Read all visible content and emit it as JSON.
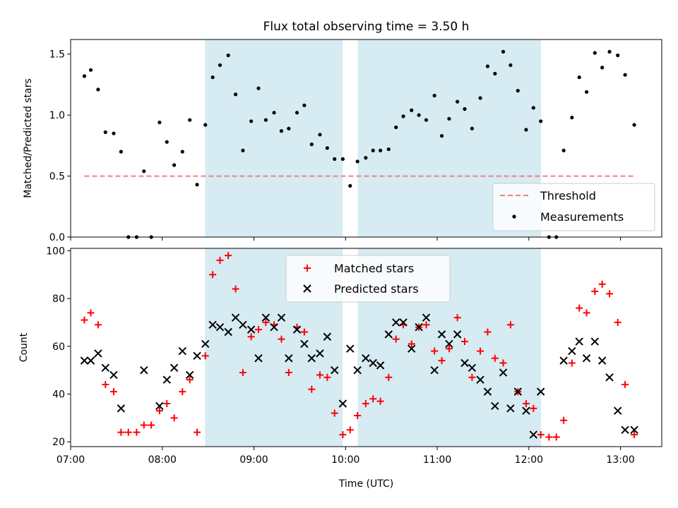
{
  "chart_data": [
    {
      "type": "scatter",
      "title": "Flux total observing time = 3.50 h",
      "ylabel": "Matched/Predicted stars",
      "xlabel": "",
      "xlim": [
        7.0,
        13.45
      ],
      "ylim": [
        0,
        1.62
      ],
      "yticks": [
        {
          "value": 0.0,
          "label": "0.0"
        },
        {
          "value": 0.5,
          "label": "0.5"
        },
        {
          "value": 1.0,
          "label": "1.0"
        },
        {
          "value": 1.5,
          "label": "1.5"
        }
      ],
      "xticks": [
        7,
        8,
        9,
        10,
        11,
        12,
        13
      ],
      "shaded_spans": [
        [
          8.467,
          9.967
        ],
        [
          10.133,
          12.133
        ]
      ],
      "shade_color": "#add8e6",
      "threshold": {
        "name": "Threshold",
        "value": 0.5,
        "x_range": [
          7.15,
          13.15
        ],
        "color": "#f08080"
      },
      "legend": {
        "position": "lower-right",
        "entries": [
          "Threshold",
          "Measurements"
        ]
      },
      "series": [
        {
          "name": "Measurements",
          "color": "#000000",
          "x": [
            7.15,
            7.22,
            7.3,
            7.38,
            7.47,
            7.55,
            7.63,
            7.72,
            7.8,
            7.88,
            7.97,
            8.05,
            8.13,
            8.22,
            8.3,
            8.38,
            8.47,
            8.55,
            8.63,
            8.72,
            8.8,
            8.88,
            8.97,
            9.05,
            9.13,
            9.22,
            9.3,
            9.38,
            9.47,
            9.55,
            9.63,
            9.72,
            9.8,
            9.88,
            9.97,
            10.05,
            10.13,
            10.22,
            10.3,
            10.38,
            10.47,
            10.55,
            10.63,
            10.72,
            10.8,
            10.88,
            10.97,
            11.05,
            11.13,
            11.22,
            11.3,
            11.38,
            11.47,
            11.55,
            11.63,
            11.72,
            11.8,
            11.88,
            11.97,
            12.05,
            12.13,
            12.22,
            12.3,
            12.38,
            12.47,
            12.55,
            12.63,
            12.72,
            12.8,
            12.88,
            12.97,
            13.05,
            13.15
          ],
          "y": [
            1.32,
            1.37,
            1.21,
            0.86,
            0.85,
            0.7,
            0.0,
            0.0,
            0.54,
            0.0,
            0.94,
            0.78,
            0.59,
            0.7,
            0.96,
            0.43,
            0.92,
            1.31,
            1.41,
            1.49,
            1.17,
            0.71,
            0.95,
            1.22,
            0.96,
            1.02,
            0.87,
            0.89,
            1.02,
            1.08,
            0.76,
            0.84,
            0.73,
            0.64,
            0.64,
            0.42,
            0.62,
            0.65,
            0.71,
            0.71,
            0.72,
            0.9,
            0.99,
            1.04,
            1.0,
            0.96,
            1.16,
            0.83,
            0.97,
            1.11,
            1.05,
            0.89,
            1.14,
            1.4,
            1.34,
            1.52,
            1.41,
            1.2,
            0.88,
            1.06,
            0.95,
            0.0,
            0.0,
            0.71,
            0.98,
            1.31,
            1.19,
            1.51,
            1.39,
            1.52,
            1.49,
            1.33,
            0.92
          ]
        }
      ]
    },
    {
      "type": "scatter",
      "title": "",
      "ylabel": "Count",
      "xlabel": "Time (UTC)",
      "xlim": [
        7.0,
        13.45
      ],
      "ylim": [
        18,
        101
      ],
      "yticks": [
        {
          "value": 20,
          "label": "20"
        },
        {
          "value": 40,
          "label": "40"
        },
        {
          "value": 60,
          "label": "60"
        },
        {
          "value": 80,
          "label": "80"
        },
        {
          "value": 100,
          "label": "100"
        }
      ],
      "xticks": [
        {
          "value": 7,
          "label": "07:00"
        },
        {
          "value": 8,
          "label": "08:00"
        },
        {
          "value": 9,
          "label": "09:00"
        },
        {
          "value": 10,
          "label": "10:00"
        },
        {
          "value": 11,
          "label": "11:00"
        },
        {
          "value": 12,
          "label": "12:00"
        },
        {
          "value": 13,
          "label": "13:00"
        }
      ],
      "shaded_spans": [
        [
          8.467,
          9.967
        ],
        [
          10.133,
          12.133
        ]
      ],
      "shade_color": "#add8e6",
      "legend": {
        "position": "upper-center",
        "entries": [
          "Matched stars",
          "Predicted stars"
        ]
      },
      "series": [
        {
          "name": "Matched stars",
          "marker": "plus",
          "color": "#ff0000",
          "x": [
            7.15,
            7.22,
            7.3,
            7.38,
            7.47,
            7.55,
            7.63,
            7.72,
            7.8,
            7.88,
            7.97,
            8.05,
            8.13,
            8.22,
            8.3,
            8.38,
            8.47,
            8.55,
            8.63,
            8.72,
            8.8,
            8.88,
            8.97,
            9.05,
            9.13,
            9.22,
            9.3,
            9.38,
            9.47,
            9.55,
            9.63,
            9.72,
            9.8,
            9.88,
            9.97,
            10.05,
            10.13,
            10.22,
            10.3,
            10.38,
            10.47,
            10.55,
            10.63,
            10.72,
            10.8,
            10.88,
            10.97,
            11.05,
            11.13,
            11.22,
            11.3,
            11.38,
            11.47,
            11.55,
            11.63,
            11.72,
            11.8,
            11.88,
            11.97,
            12.05,
            12.13,
            12.22,
            12.3,
            12.38,
            12.47,
            12.55,
            12.63,
            12.72,
            12.8,
            12.88,
            12.97,
            13.05,
            13.15
          ],
          "y": [
            71,
            74,
            69,
            44,
            41,
            24,
            24,
            24,
            27,
            27,
            33,
            36,
            30,
            41,
            46,
            24,
            56,
            90,
            96,
            98,
            84,
            49,
            64,
            67,
            70,
            69,
            63,
            49,
            68,
            66,
            42,
            48,
            47,
            32,
            23,
            25,
            31,
            36,
            38,
            37,
            47,
            63,
            69,
            61,
            68,
            69,
            58,
            54,
            59,
            72,
            62,
            47,
            58,
            66,
            55,
            53,
            69,
            41,
            36,
            34,
            23,
            22,
            22,
            29,
            53,
            76,
            74,
            83,
            86,
            82,
            70,
            44,
            23
          ]
        },
        {
          "name": "Predicted stars",
          "marker": "x",
          "color": "#000000",
          "x": [
            7.15,
            7.22,
            7.3,
            7.38,
            7.47,
            7.55,
            7.8,
            7.97,
            8.05,
            8.13,
            8.22,
            8.3,
            8.38,
            8.47,
            8.55,
            8.63,
            8.72,
            8.8,
            8.88,
            8.97,
            9.05,
            9.13,
            9.22,
            9.3,
            9.38,
            9.47,
            9.55,
            9.63,
            9.72,
            9.8,
            9.88,
            9.97,
            10.05,
            10.13,
            10.22,
            10.3,
            10.38,
            10.47,
            10.55,
            10.63,
            10.72,
            10.8,
            10.88,
            10.97,
            11.05,
            11.13,
            11.22,
            11.3,
            11.38,
            11.47,
            11.55,
            11.63,
            11.72,
            11.8,
            11.88,
            11.97,
            12.05,
            12.13,
            12.38,
            12.47,
            12.55,
            12.63,
            12.72,
            12.8,
            12.88,
            12.97,
            13.05,
            13.15
          ],
          "y": [
            54,
            54,
            57,
            51,
            48,
            34,
            50,
            35,
            46,
            51,
            58,
            48,
            56,
            61,
            69,
            68,
            66,
            72,
            69,
            67,
            55,
            72,
            68,
            72,
            55,
            67,
            61,
            55,
            57,
            64,
            50,
            36,
            59,
            50,
            55,
            53,
            52,
            65,
            70,
            70,
            59,
            68,
            72,
            50,
            65,
            61,
            65,
            53,
            51,
            46,
            41,
            35,
            49,
            34,
            41,
            33,
            23,
            41,
            54,
            58,
            62,
            55,
            62,
            54,
            47,
            33,
            25,
            25
          ]
        }
      ]
    }
  ]
}
